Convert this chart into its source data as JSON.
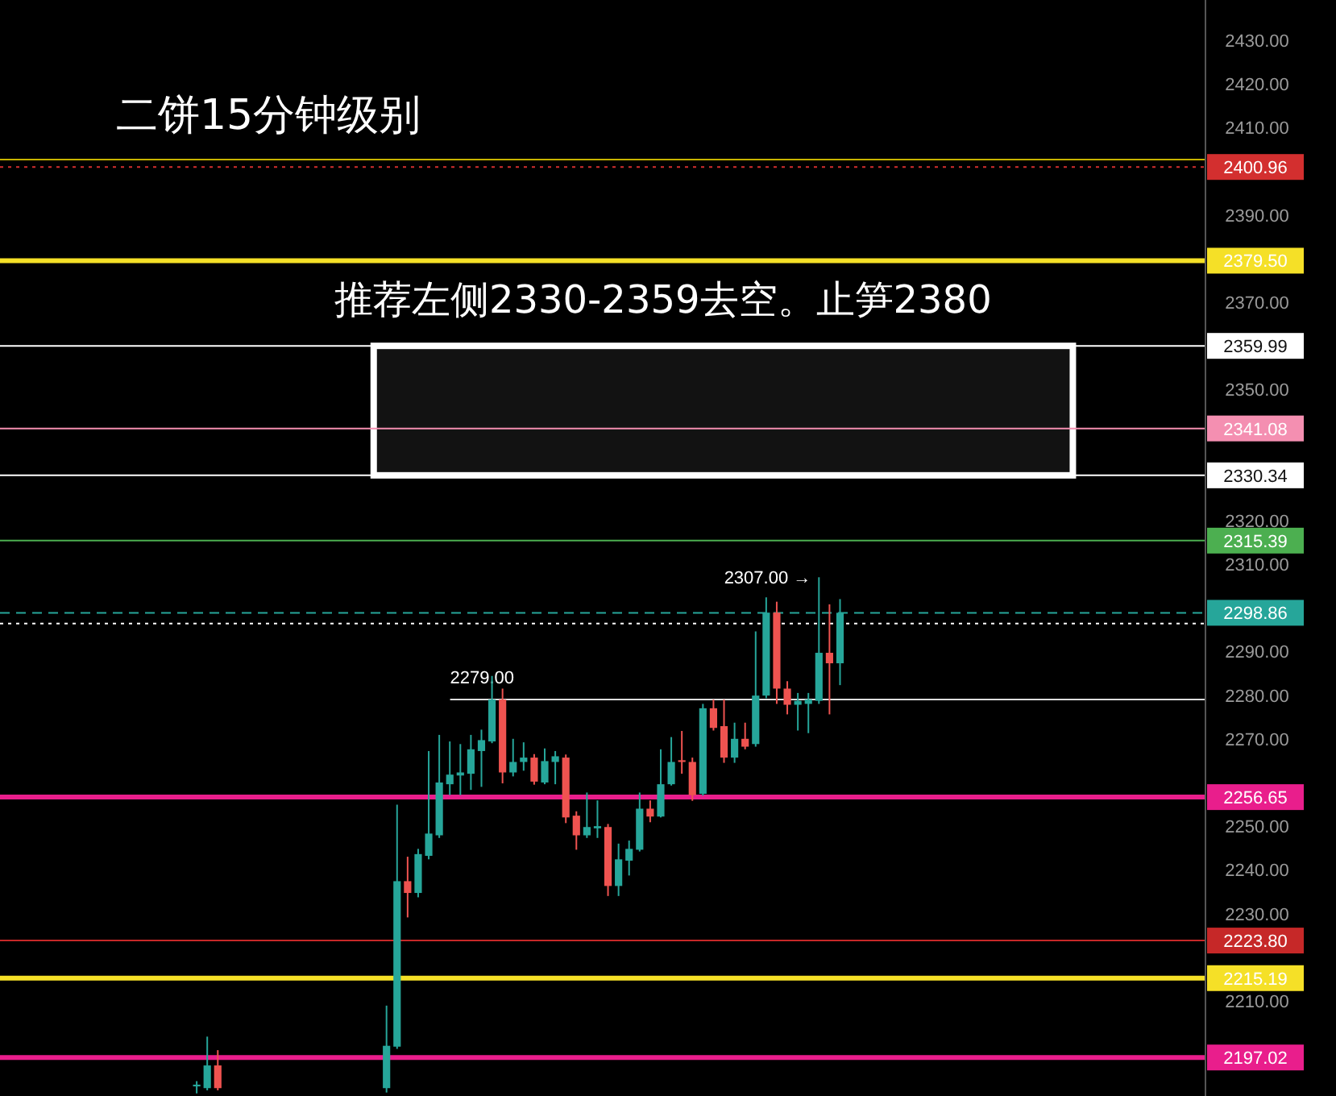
{
  "chart_data": {
    "type": "candlestick",
    "title": "二饼15分钟级别",
    "annotations": [
      "推荐左侧2330-2359去空。止笋2380",
      "2307.00 →"
    ],
    "categories": [
      null,
      null,
      null,
      null,
      null,
      null,
      null,
      null,
      null,
      null,
      null,
      null,
      null,
      null,
      null,
      null,
      null,
      null,
      null,
      null,
      null,
      null,
      null,
      null,
      null,
      null,
      null,
      null,
      null,
      null,
      null,
      null,
      null,
      null,
      null,
      null,
      null,
      null,
      null,
      null,
      null,
      null,
      null,
      null,
      null,
      null,
      null,
      null,
      null,
      null,
      null,
      null,
      null,
      null,
      null,
      null,
      null,
      null,
      null,
      null,
      null,
      null,
      null,
      null,
      null,
      null,
      null,
      null,
      null,
      null,
      null,
      null,
      null,
      null,
      null,
      null,
      null,
      null,
      null,
      null,
      null,
      null,
      null,
      null,
      null,
      null,
      null,
      null,
      null,
      null,
      null,
      null,
      null,
      null,
      null,
      null,
      null,
      null,
      null,
      null,
      null,
      null,
      null,
      null,
      null,
      null,
      null,
      null,
      null,
      null,
      null,
      null,
      null,
      null
    ],
    "ohlc": [
      null,
      null,
      null,
      null,
      null,
      null,
      null,
      null,
      null,
      null,
      null,
      null,
      null,
      null,
      null,
      null,
      null,
      null,
      [
        2190.4,
        2191.6,
        2188.8,
        2190.8
      ],
      [
        2190.0,
        2201.8,
        2189.5,
        2195.2
      ],
      [
        2195.2,
        2198.7,
        2189.5,
        2190.0
      ],
      null,
      null,
      null,
      null,
      null,
      null,
      null,
      null,
      null,
      null,
      null,
      null,
      null,
      null,
      null,
      [
        2190.0,
        2208.9,
        2189.0,
        2199.7
      ],
      [
        2199.5,
        2254.9,
        2199.0,
        2237.4
      ],
      [
        2237.4,
        2243.0,
        2229.1,
        2234.7
      ],
      [
        2234.7,
        2244.8,
        2233.7,
        2243.6
      ],
      [
        2243.2,
        2267.2,
        2242.4,
        2248.3
      ],
      [
        2247.9,
        2270.9,
        2247.3,
        2260.0
      ],
      [
        2259.6,
        2269.4,
        2257.1,
        2261.8
      ],
      [
        2261.6,
        2268.8,
        2257.1,
        2262.3
      ],
      [
        2262.0,
        2270.9,
        2258.3,
        2267.6
      ],
      [
        2267.2,
        2272.1,
        2259.0,
        2269.7
      ],
      [
        2269.4,
        2284.4,
        2269.0,
        2279.0
      ],
      [
        2279.0,
        2281.5,
        2259.8,
        2262.3
      ],
      [
        2262.3,
        2270.0,
        2261.4,
        2264.7
      ],
      [
        2264.7,
        2269.2,
        2262.7,
        2265.7
      ],
      [
        2265.7,
        2266.5,
        2259.5,
        2260.2
      ],
      [
        2260.0,
        2267.8,
        2259.6,
        2264.9
      ],
      [
        2264.7,
        2267.2,
        2259.6,
        2266.0
      ],
      [
        2265.7,
        2266.4,
        2250.7,
        2252.0
      ],
      [
        2252.4,
        2253.4,
        2244.6,
        2247.9
      ],
      [
        2247.9,
        2257.7,
        2247.3,
        2249.8
      ],
      [
        2249.5,
        2255.9,
        2247.3,
        2250.0
      ],
      [
        2249.8,
        2250.5,
        2234.0,
        2236.3
      ],
      [
        2236.3,
        2246.0,
        2234.0,
        2242.4
      ],
      [
        2242.1,
        2246.7,
        2238.7,
        2244.8
      ],
      [
        2244.6,
        2257.7,
        2244.2,
        2254.0
      ],
      [
        2254.0,
        2255.9,
        2250.9,
        2252.2
      ],
      [
        2252.2,
        2267.6,
        2252.0,
        2259.6
      ],
      [
        2259.6,
        2270.4,
        2259.3,
        2264.7
      ],
      [
        2265.1,
        2271.8,
        2262.0,
        2264.7
      ],
      [
        2264.7,
        2265.7,
        2255.8,
        2257.1
      ],
      [
        2257.4,
        2278.0,
        2257.0,
        2277.0
      ],
      [
        2277.0,
        2279.0,
        2271.9,
        2272.5
      ],
      [
        2272.9,
        2279.0,
        2264.5,
        2265.7
      ],
      [
        2265.7,
        2273.7,
        2264.5,
        2270.0
      ],
      [
        2270.0,
        2273.7,
        2267.6,
        2268.2
      ],
      [
        2268.8,
        2294.6,
        2268.2,
        2279.9
      ],
      [
        2279.9,
        2302.4,
        2279.3,
        2298.9
      ],
      [
        2298.9,
        2301.4,
        2278.0,
        2281.5
      ],
      [
        2281.5,
        2283.2,
        2275.6,
        2277.8
      ],
      [
        2277.8,
        2280.5,
        2271.9,
        2278.7
      ],
      [
        2278.0,
        2280.5,
        2271.3,
        2279.0
      ],
      [
        2278.7,
        2307.0,
        2278.0,
        2289.7
      ],
      [
        2289.7,
        2300.8,
        2275.6,
        2287.3
      ],
      [
        2287.3,
        2302.0,
        2282.3,
        2298.86
      ],
      null,
      null,
      null,
      null,
      null,
      null,
      null,
      null,
      null,
      null,
      null,
      null,
      null,
      null,
      null,
      null,
      null,
      null,
      null,
      null,
      null,
      null,
      null,
      null,
      null,
      null,
      null,
      null,
      null,
      null,
      null,
      null,
      null,
      null
    ],
    "ylim": [
      2188.2,
      2439.2
    ],
    "yticks": [
      {
        "value": 2210,
        "label": "2210.00"
      },
      {
        "value": 2230,
        "label": "2230.00"
      },
      {
        "value": 2240,
        "label": "2240.00"
      },
      {
        "value": 2250,
        "label": "2250.00"
      },
      {
        "value": 2270,
        "label": "2270.00"
      },
      {
        "value": 2280,
        "label": "2280.00"
      },
      {
        "value": 2290,
        "label": "2290.00"
      },
      {
        "value": 2310,
        "label": "2310.00"
      },
      {
        "value": 2320,
        "label": "2320.00"
      },
      {
        "value": 2350,
        "label": "2350.00"
      },
      {
        "value": 2370,
        "label": "2370.00"
      },
      {
        "value": 2390,
        "label": "2390.00"
      },
      {
        "value": 2410,
        "label": "2410.00"
      },
      {
        "value": 2420,
        "label": "2420.00"
      },
      {
        "value": 2430,
        "label": "2430.00"
      }
    ],
    "ref_lines": [
      {
        "axis": "y",
        "value": 2402.65,
        "color": "#c8b400"
      },
      {
        "axis": "y",
        "value": 2400.96,
        "label": "2400.96",
        "color": "#d32f2f",
        "line_style": "dotted"
      },
      {
        "axis": "y",
        "value": 2379.5,
        "label": "2379.50",
        "color": "#f5e027"
      },
      {
        "axis": "y",
        "value": 2359.99,
        "label": "2359.99",
        "color": "#ffffff"
      },
      {
        "axis": "y",
        "value": 2341.08,
        "label": "2341.08",
        "color": "#f48fb1"
      },
      {
        "axis": "y",
        "value": 2330.34,
        "label": "2330.34",
        "color": "#ffffff"
      },
      {
        "axis": "y",
        "value": 2315.39,
        "label": "2315.39",
        "color": "#4caf50"
      },
      {
        "axis": "y",
        "value": 2298.86,
        "label": "2298.86",
        "color": "#26a69a",
        "line_style": "dashed"
      },
      {
        "axis": "y",
        "value": 2296.4,
        "color": "#ffffff",
        "line_style": "dotted"
      },
      {
        "axis": "y",
        "value": 2279,
        "label": "2279.00"
      },
      {
        "axis": "y",
        "value": 2256.65,
        "label": "2256.65",
        "color": "#e91e8c"
      },
      {
        "axis": "y",
        "value": 2223.8,
        "label": "2223.80",
        "color": "#c62828"
      },
      {
        "axis": "y",
        "value": 2215.19,
        "label": "2215.19",
        "color": "#f5e027"
      },
      {
        "axis": "y",
        "value": 2197.02,
        "label": "2197.02",
        "color": "#e91e8c"
      }
    ],
    "bands": [
      {
        "axis": "y",
        "from": 2330.34,
        "to": 2359.99,
        "color": "#ffffff"
      }
    ],
    "grid": false
  }
}
